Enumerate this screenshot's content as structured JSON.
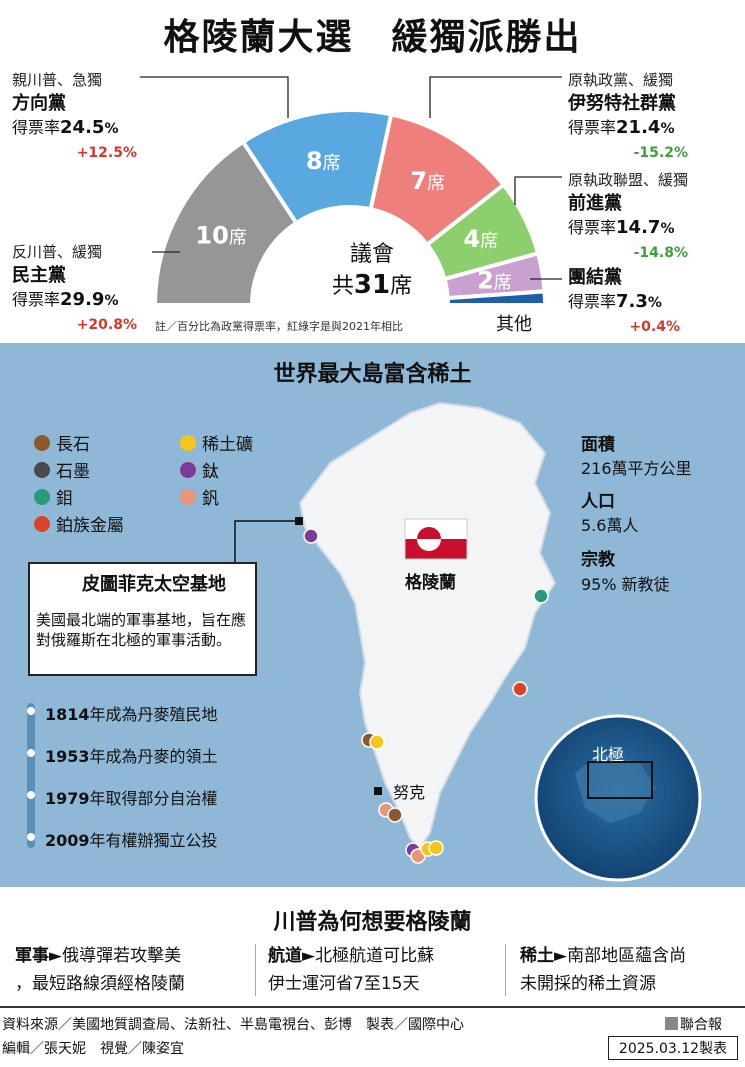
{
  "title": "格陵蘭大選　緩獨派勝出",
  "chart_data": {
    "type": "pie",
    "variant": "semicircle-parliament",
    "total_seats": 31,
    "center_label_1": "議會",
    "center_label_2_prefix": "共",
    "center_label_2_value": "31",
    "center_label_2_suffix": "席",
    "seat_suffix": "席",
    "categories": [
      "民主黨",
      "方向黨",
      "伊努特社群黨",
      "前進黨",
      "團結黨",
      "其他"
    ],
    "values": [
      10,
      8,
      7,
      4,
      2,
      0
    ],
    "colors": [
      "#969696",
      "#5aa8e0",
      "#ee7f7b",
      "#8ccf6c",
      "#c8a1cf",
      "#1f5fa8"
    ],
    "vote_share": [
      29.9,
      24.5,
      21.4,
      14.7,
      7.3,
      null
    ],
    "change_vs_2021": [
      "+20.8%",
      "+12.5%",
      "-15.2%",
      "-14.8%",
      "+0.4%",
      null
    ],
    "note": "註／百分比為政黨得票率，紅綠字是與2021年相比",
    "other_label": "其他"
  },
  "parties": [
    {
      "stance": "反川普、緩獨",
      "name": "民主黨",
      "rate_label": "得票率",
      "rate": "29.9",
      "pct": "%",
      "change": "+20.8%",
      "dir": "up"
    },
    {
      "stance": "親川普、急獨",
      "name": "方向黨",
      "rate_label": "得票率",
      "rate": "24.5",
      "pct": "%",
      "change": "+12.5%",
      "dir": "up"
    },
    {
      "stance": "原執政黨、緩獨",
      "name": "伊努特社群黨",
      "rate_label": "得票率",
      "rate": "21.4",
      "pct": "%",
      "change": "-15.2%",
      "dir": "down"
    },
    {
      "stance": "原執政聯盟、緩獨",
      "name": "前進黨",
      "rate_label": "得票率",
      "rate": "14.7",
      "pct": "%",
      "change": "-14.8%",
      "dir": "down"
    },
    {
      "stance": "",
      "name": "團結黨",
      "rate_label": "得票率",
      "rate": "7.3",
      "pct": "%",
      "change": "+0.4%",
      "dir": "up"
    }
  ],
  "map": {
    "title": "世界最大島富含稀土",
    "legend": [
      {
        "label": "長石",
        "color": "#8a5a2e"
      },
      {
        "label": "石墨",
        "color": "#4a4a4a"
      },
      {
        "label": "鉬",
        "color": "#2a9a7a"
      },
      {
        "label": "鉑族金屬",
        "color": "#d8452a"
      },
      {
        "label": "稀土礦",
        "color": "#f5c518"
      },
      {
        "label": "鈦",
        "color": "#7d3b96"
      },
      {
        "label": "釩",
        "color": "#e8957a"
      }
    ],
    "facts": [
      {
        "label": "面積",
        "value": "216萬平方公里"
      },
      {
        "label": "人口",
        "value": "5.6萬人"
      },
      {
        "label": "宗教",
        "value": "95% 新教徒"
      }
    ],
    "country_label": "格陵蘭",
    "capital_label": "努克",
    "arctic_label": "北極",
    "base": {
      "title": "皮圖菲克太空基地",
      "desc": "美國最北端的軍事基地，旨在應對俄羅斯在北極的軍事活動。"
    },
    "timeline": [
      {
        "year": "1814",
        "text": "年成為丹麥殖民地"
      },
      {
        "year": "1953",
        "text": "年成為丹麥的領土"
      },
      {
        "year": "1979",
        "text": "年取得部分自治權"
      },
      {
        "year": "2009",
        "text": "年有權辦獨立公投"
      }
    ]
  },
  "why": {
    "title": "川普為何想要格陵蘭",
    "items": [
      {
        "label": "軍事",
        "line1": "俄導彈若攻擊美",
        "line2": "，最短路線須經格陵蘭"
      },
      {
        "label": "航道",
        "line1": "北極航道可比蘇",
        "line2": "伊士運河省7至15天"
      },
      {
        "label": "稀土",
        "line1": "南部地區蘊含尚",
        "line2": "未開採的稀土資源"
      }
    ]
  },
  "footer": {
    "source": "資料來源／美國地質調查局、法新社、半島電視台、彭博　製表／國際中心",
    "editors": "編輯／張天妮　視覺／陳姿宜",
    "brand": "聯合報",
    "date": "2025.03.12製表"
  }
}
